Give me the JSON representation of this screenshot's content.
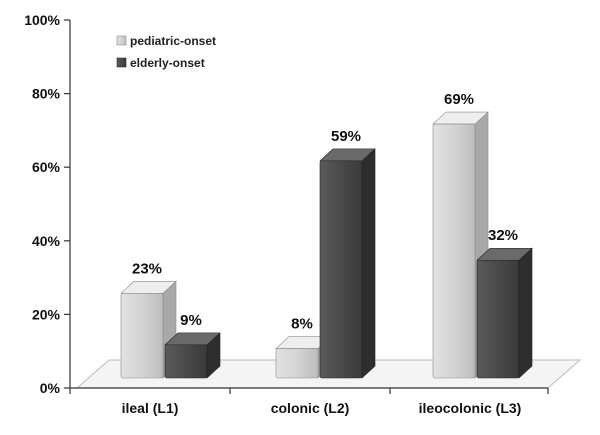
{
  "chart_data": {
    "type": "bar",
    "categories": [
      "ileal (L1)",
      "colonic (L2)",
      "ileocolonic (L3)"
    ],
    "series": [
      {
        "name": "pediatric-onset",
        "values": [
          23,
          8,
          69
        ]
      },
      {
        "name": "elderly-onset",
        "values": [
          9,
          59,
          32
        ]
      }
    ],
    "data_labels": [
      [
        "23%",
        "9%"
      ],
      [
        "8%",
        "59%"
      ],
      [
        "69%",
        "32%"
      ]
    ],
    "y_ticks": [
      "0%",
      "20%",
      "40%",
      "60%",
      "80%",
      "100%"
    ],
    "ylim": [
      0,
      100
    ],
    "title": "",
    "xlabel": "",
    "ylabel": "",
    "grid": false,
    "legend_position": "top-left",
    "colors": {
      "pediatric-onset": "#cfcfcf",
      "elderly-onset": "#4a4a4a"
    }
  }
}
